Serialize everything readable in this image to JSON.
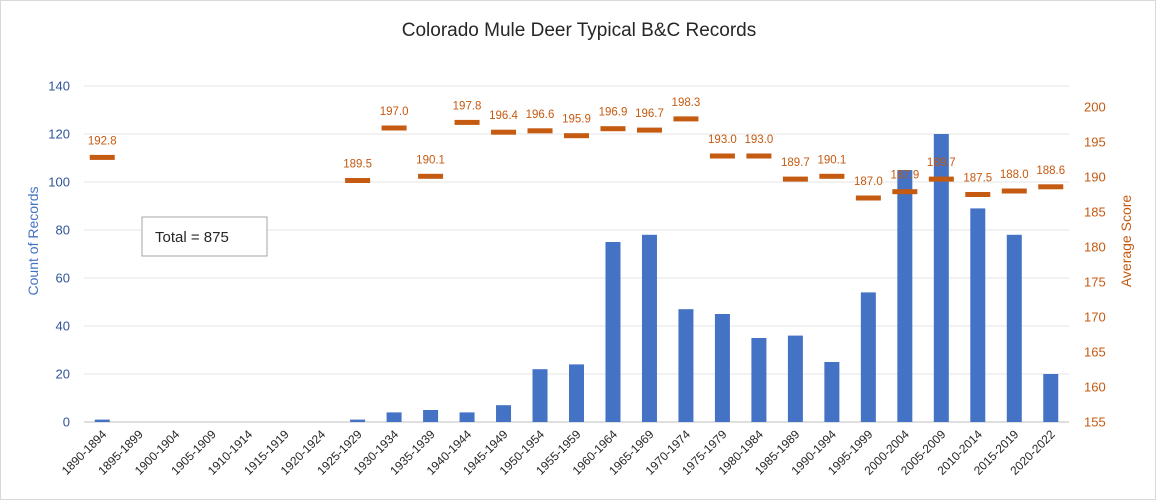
{
  "chart_data": {
    "type": "bar+marker",
    "title": "Colorado Mule Deer Typical B&C Records",
    "categories": [
      "1890-1894",
      "1895-1899",
      "1900-1904",
      "1905-1909",
      "1910-1914",
      "1915-1919",
      "1920-1924",
      "1925-1929",
      "1930-1934",
      "1935-1939",
      "1940-1944",
      "1945-1949",
      "1950-1954",
      "1955-1959",
      "1960-1964",
      "1965-1969",
      "1970-1974",
      "1975-1979",
      "1980-1984",
      "1985-1989",
      "1990-1994",
      "1995-1999",
      "2000-2004",
      "2005-2009",
      "2010-2014",
      "2015-2019",
      "2020-2022"
    ],
    "series": [
      {
        "axis": "left",
        "kind": "bar",
        "color": "#4472c4",
        "values": [
          1,
          0,
          0,
          0,
          0,
          0,
          0,
          1,
          4,
          5,
          4,
          7,
          22,
          24,
          75,
          78,
          47,
          45,
          35,
          36,
          25,
          54,
          105,
          120,
          89,
          78,
          20
        ]
      },
      {
        "axis": "right",
        "kind": "marker",
        "color": "#c55a11",
        "values": [
          192.8,
          null,
          null,
          null,
          null,
          null,
          null,
          189.5,
          197.0,
          190.1,
          197.8,
          196.4,
          196.6,
          195.9,
          196.9,
          196.7,
          198.3,
          193.0,
          193.0,
          189.7,
          190.1,
          187.0,
          187.9,
          189.7,
          187.5,
          188.0,
          188.6
        ],
        "labels": [
          "192.8",
          "",
          "",
          "",
          "",
          "",
          "",
          "189.5",
          "197.0",
          "190.1",
          "197.8",
          "196.4",
          "196.6",
          "195.9",
          "196.9",
          "196.7",
          "198.3",
          "193.0",
          "193.0",
          "189.7",
          "190.1",
          "187.0",
          "187.9",
          "189.7",
          "187.5",
          "188.0",
          "188.6"
        ]
      }
    ],
    "y_left": {
      "label": "Count of Records",
      "range": [
        0,
        150
      ],
      "ticks": [
        "0",
        "20",
        "40",
        "60",
        "80",
        "100",
        "120",
        "140"
      ],
      "tick_values": [
        0,
        20,
        40,
        60,
        80,
        100,
        120,
        140
      ]
    },
    "y_right": {
      "label": "Average Score",
      "range": [
        155,
        202
      ],
      "ticks": [
        "155",
        "160",
        "165",
        "170",
        "175",
        "180",
        "185",
        "190",
        "195",
        "200"
      ],
      "tick_values": [
        155,
        160,
        165,
        170,
        175,
        180,
        185,
        190,
        195,
        200
      ]
    },
    "annotation": "Total = 875",
    "grid": "horizontal",
    "legend": "none"
  }
}
